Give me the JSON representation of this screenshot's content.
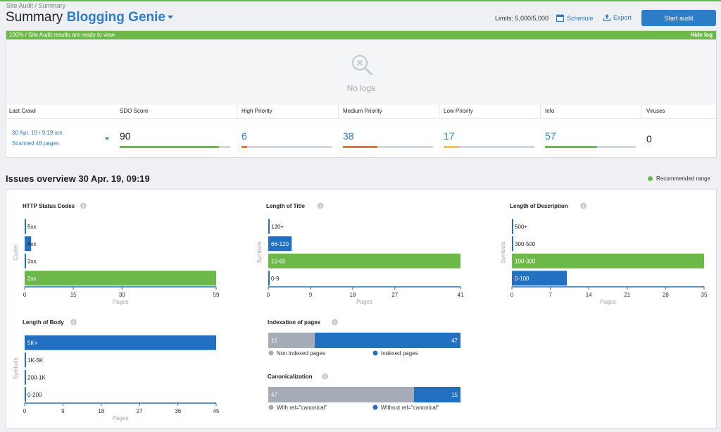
{
  "header": {
    "breadcrumb": "Site Audit / Summary",
    "title_prefix": "Summary",
    "project": "Blogging Genie",
    "limits": "Limits: 5,000/5,000",
    "schedule": "Schedule",
    "export": "Export",
    "start_audit": "Start audit",
    "icons": {
      "schedule": "calendar-icon",
      "export": "upload-icon",
      "project": "chevron-down-icon"
    }
  },
  "log": {
    "status": "100% / Site Audit results are ready to view",
    "hide": "Hide log",
    "empty": "No logs",
    "icon": "search-x-icon"
  },
  "stats": {
    "last_crawl_label": "Last Crawl",
    "crawl_date": "30 Apr. 19 / 9:19 am.",
    "scanned": "Scanned 48 pages",
    "items": [
      {
        "label": "SDO Score",
        "value": "90",
        "fraction": 0.9,
        "color": "#6cb94a",
        "blue": false
      },
      {
        "label": "High Priority",
        "value": "6",
        "fraction": 0.06,
        "color": "#e8743b",
        "blue": true
      },
      {
        "label": "Medium Priority",
        "value": "38",
        "fraction": 0.38,
        "color": "#e8743b",
        "blue": true
      },
      {
        "label": "Low Priority",
        "value": "17",
        "fraction": 0.17,
        "color": "#f5c542",
        "blue": true
      },
      {
        "label": "Info",
        "value": "57",
        "fraction": 0.57,
        "color": "#6cb94a",
        "blue": true
      },
      {
        "label": "Viruses",
        "value": "0",
        "fraction": null,
        "color": null,
        "blue": false
      }
    ]
  },
  "issues": {
    "title": "Issues overview 30 Apr. 19, 09:19",
    "recommended": "Recommended range",
    "recommended_color": "#6cb94a"
  },
  "chart_data": [
    {
      "type": "bar",
      "title": "HTTP Status Codes",
      "ylabel": "Codes",
      "xlabel": "Pages",
      "categories": [
        "5xx",
        "4xx",
        "3xx",
        "2xx"
      ],
      "values": [
        0,
        2,
        0,
        59
      ],
      "highlight": [
        "2xx"
      ],
      "xticks": [
        0,
        15,
        30,
        59
      ],
      "xlim": [
        0,
        59
      ]
    },
    {
      "type": "bar",
      "title": "Length of Title",
      "ylabel": "Symbols",
      "xlabel": "Pages",
      "categories": [
        "120+",
        "66-120",
        "10-65",
        "0-9"
      ],
      "values": [
        0,
        5,
        41,
        0
      ],
      "highlight": [
        "10-65"
      ],
      "xticks": [
        0,
        9,
        18,
        27,
        41
      ],
      "xlim": [
        0,
        41
      ]
    },
    {
      "type": "bar",
      "title": "Length of Description",
      "ylabel": "Symbols",
      "xlabel": "Pages",
      "categories": [
        "500+",
        "300-500",
        "100-300",
        "0-100"
      ],
      "values": [
        0,
        0,
        35,
        10
      ],
      "highlight": [
        "100-300"
      ],
      "xticks": [
        0,
        7,
        14,
        21,
        28,
        35
      ],
      "xlim": [
        0,
        35
      ]
    },
    {
      "type": "bar",
      "title": "Length of Body",
      "ylabel": "Symbols",
      "xlabel": "Pages",
      "categories": [
        "5K+",
        "1K-5K",
        "200-1K",
        "0-200"
      ],
      "values": [
        45,
        0,
        0,
        0
      ],
      "highlight": [],
      "xticks": [
        0,
        9,
        18,
        27,
        36,
        45
      ],
      "xlim": [
        0,
        45
      ]
    },
    {
      "type": "bar",
      "title": "Indexation of pages",
      "series": [
        {
          "name": "Non indexed pages",
          "values": [
            15
          ],
          "color": "#a6abb8"
        },
        {
          "name": "Indexed pages",
          "values": [
            47
          ],
          "color": "#2270c1"
        }
      ]
    },
    {
      "type": "bar",
      "title": "Canonicalization",
      "series": [
        {
          "name": "With rel=\"canonical\"",
          "values": [
            47
          ],
          "color": "#a6abb8"
        },
        {
          "name": "Without rel=\"canonical\"",
          "values": [
            15
          ],
          "color": "#2270c1"
        }
      ]
    }
  ]
}
